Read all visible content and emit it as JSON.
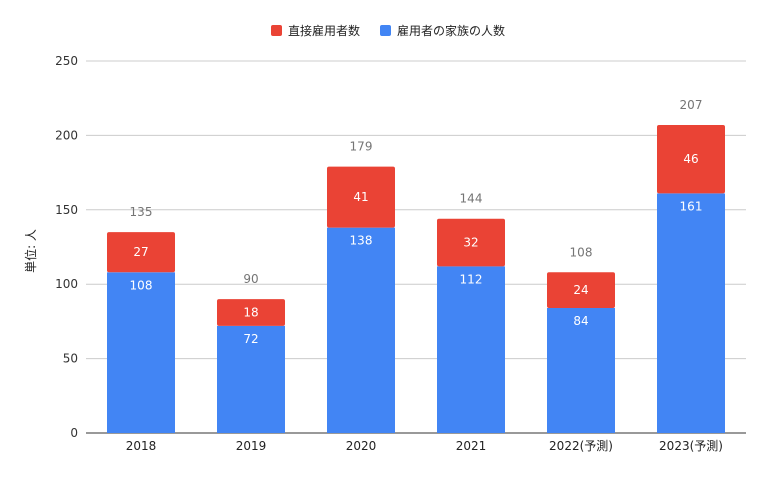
{
  "chart_data": {
    "type": "bar",
    "stacked": true,
    "categories": [
      "2018",
      "2019",
      "2020",
      "2021",
      "2022(予測)",
      "2023(予測)"
    ],
    "series": [
      {
        "name": "雇用者の家族の人数",
        "color": "#4285F4",
        "values": [
          108,
          72,
          138,
          112,
          84,
          161
        ]
      },
      {
        "name": "直接雇用者数",
        "color": "#EA4335",
        "values": [
          27,
          18,
          41,
          32,
          24,
          46
        ]
      }
    ],
    "totals": [
      135,
      90,
      179,
      144,
      108,
      207
    ],
    "legend_order": [
      "直接雇用者数",
      "雇用者の家族の人数"
    ],
    "ylabel": "単位: 人",
    "ylim": [
      0,
      250
    ],
    "yticks": [
      0,
      50,
      100,
      150,
      200,
      250
    ],
    "grid": true,
    "legend_position": "top"
  }
}
